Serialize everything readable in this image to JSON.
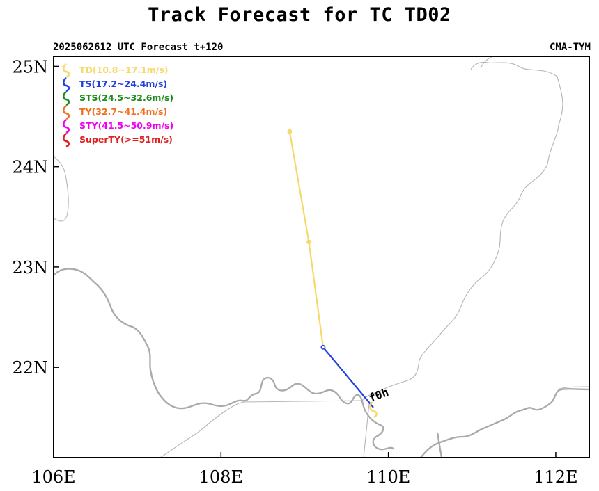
{
  "header": {
    "title": "Track Forecast for TC TD02",
    "subtitle_left": "2025062612 UTC Forecast t+120",
    "subtitle_right": "CMA-TYM"
  },
  "map": {
    "lon_range": [
      106.0,
      112.4
    ],
    "lat_range": [
      21.1,
      25.1
    ],
    "x_ticks": [
      {
        "value": 106,
        "label": "106E"
      },
      {
        "value": 108,
        "label": "108E"
      },
      {
        "value": 110,
        "label": "110E"
      },
      {
        "value": 112,
        "label": "112E"
      }
    ],
    "y_ticks": [
      {
        "value": 25,
        "label": "25N"
      },
      {
        "value": 24,
        "label": "24N"
      },
      {
        "value": 23,
        "label": "23N"
      },
      {
        "value": 22,
        "label": "22N"
      }
    ],
    "coastline_color": "#aaaaaa",
    "border_color": "#b4b4b4"
  },
  "legend": [
    {
      "label": "TD(10.8~17.1m/s)",
      "color": "#f5d96b",
      "category": "TD"
    },
    {
      "label": "TS(17.2~24.4m/s)",
      "color": "#1f3fe0",
      "category": "TS"
    },
    {
      "label": "STS(24.5~32.6m/s)",
      "color": "#1a8a1a",
      "category": "STS"
    },
    {
      "label": "TY(32.7~41.4m/s)",
      "color": "#f07020",
      "category": "TY"
    },
    {
      "label": "STY(41.5~50.9m/s)",
      "color": "#f000f0",
      "category": "STY"
    },
    {
      "label": "SuperTY(>=51m/s)",
      "color": "#e02020",
      "category": "SuperTY"
    }
  ],
  "track": {
    "start_label": "f0h",
    "points": [
      {
        "lon": 109.82,
        "lat": 21.6,
        "category": "TD"
      },
      {
        "lon": 109.22,
        "lat": 22.2,
        "category": "TS"
      },
      {
        "lon": 109.05,
        "lat": 23.25,
        "category": "TD"
      },
      {
        "lon": 108.82,
        "lat": 24.35,
        "category": "TD"
      }
    ],
    "segment_colors": [
      "#1f3fe0",
      "#f5d96b",
      "#f5d96b"
    ]
  }
}
